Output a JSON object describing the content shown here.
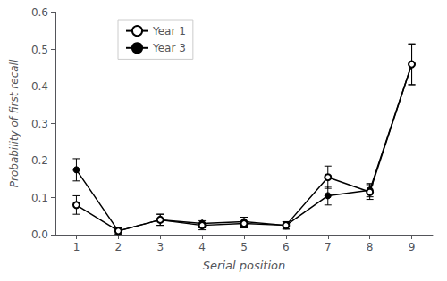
{
  "chart_data": {
    "type": "line",
    "x": [
      1,
      2,
      3,
      4,
      5,
      6,
      7,
      8,
      9
    ],
    "series": [
      {
        "name": "Year 1",
        "color": "#000000",
        "marker": "circle-open",
        "values": [
          0.08,
          0.01,
          0.04,
          0.025,
          0.03,
          0.025,
          0.155,
          0.115,
          0.46
        ],
        "errors": [
          0.025,
          0.008,
          0.015,
          0.012,
          0.012,
          0.01,
          0.03,
          0.02,
          0.055
        ]
      },
      {
        "name": "Year 3",
        "color": "#000000",
        "marker": "circle",
        "values": [
          0.175,
          0.01,
          0.04,
          0.03,
          0.035,
          0.025,
          0.105,
          0.12,
          0.46
        ],
        "errors": [
          0.03,
          0.008,
          0.015,
          0.012,
          0.012,
          0.01,
          0.025,
          0.018,
          0.055
        ]
      }
    ],
    "xlabel": "Serial position",
    "ylabel": "Probability of first recall",
    "xlim": [
      0.5,
      9.5
    ],
    "xticks": [
      1,
      2,
      3,
      4,
      5,
      6,
      7,
      8,
      9
    ],
    "ylim": [
      0,
      0.6
    ],
    "yticks": [
      {
        "value": 0,
        "label": "0.0"
      },
      0.1,
      0.2,
      0.3,
      0.4,
      0.5,
      0.6
    ],
    "grid": false,
    "legend": "upper left"
  }
}
